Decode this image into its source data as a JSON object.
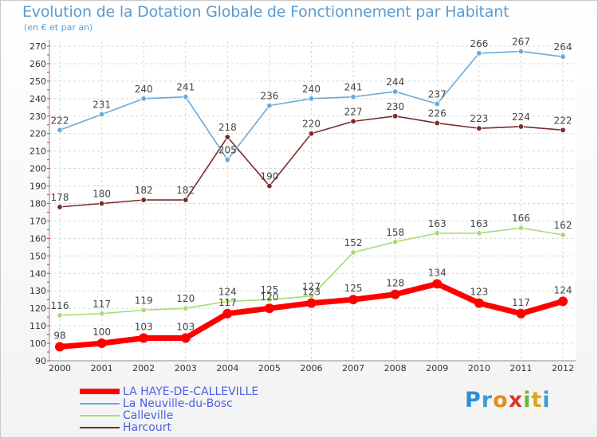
{
  "header": {
    "title": "Evolution de la Dotation Globale de Fonctionnement par Habitant",
    "subtitle": "(en € et par an)"
  },
  "brand": {
    "name": "Proxiti",
    "letters": [
      "P",
      "r",
      "o",
      "x",
      "i",
      "t",
      "i"
    ],
    "colors": [
      "#2e8fd8",
      "#3aa0d8",
      "#e88b1a",
      "#d43b2a",
      "#6ab83a",
      "#e0a51a",
      "#3aa0d8"
    ]
  },
  "chart_data": {
    "type": "line",
    "title": "Evolution de la Dotation Globale de Fonctionnement par Habitant",
    "subtitle": "(en € et par an)",
    "xlabel": "",
    "ylabel": "",
    "categories": [
      "2000",
      "2001",
      "2002",
      "2003",
      "2004",
      "2005",
      "2006",
      "2007",
      "2008",
      "2009",
      "2010",
      "2011",
      "2012"
    ],
    "ylim": [
      90,
      270
    ],
    "yticks": [
      90,
      100,
      110,
      120,
      130,
      140,
      150,
      160,
      170,
      180,
      190,
      200,
      210,
      220,
      230,
      240,
      250,
      260,
      270
    ],
    "grid": true,
    "legend_position": "bottom-left",
    "series": [
      {
        "name": "LA HAYE-DE-CALLEVILLE",
        "color": "#ff0000",
        "values": [
          98,
          100,
          103,
          103,
          117,
          120,
          123,
          125,
          128,
          134,
          123,
          117,
          124
        ],
        "labels": [
          "98",
          "100",
          "103",
          "103",
          "117",
          "120",
          "123",
          "125",
          "128",
          "134",
          "123",
          "117",
          "124"
        ]
      },
      {
        "name": "La Neuville-du-Bosc",
        "color": "#6aaad8",
        "values": [
          222,
          231,
          240,
          241,
          205,
          236,
          240,
          241,
          244,
          237,
          266,
          267,
          264
        ],
        "labels": [
          "222",
          "231",
          "240",
          "241",
          "205",
          "236",
          "240",
          "241",
          "244",
          "237",
          "266",
          "267",
          "264"
        ]
      },
      {
        "name": "Calleville",
        "color": "#a8dc70",
        "values": [
          116,
          117,
          119,
          120,
          124,
          125,
          127,
          152,
          158,
          163,
          163,
          166,
          162
        ],
        "labels": [
          "116",
          "117",
          "119",
          "120",
          "124",
          "125",
          "127",
          "152",
          "158",
          "163",
          "163",
          "166",
          "162"
        ]
      },
      {
        "name": "Harcourt",
        "color": "#7a2a2a",
        "values": [
          178,
          180,
          182,
          182,
          218,
          190,
          220,
          227,
          230,
          226,
          223,
          224,
          222
        ],
        "labels": [
          "178",
          "180",
          "182",
          "182",
          "218",
          "190",
          "220",
          "227",
          "230",
          "226",
          "223",
          "224",
          "222"
        ]
      }
    ]
  }
}
